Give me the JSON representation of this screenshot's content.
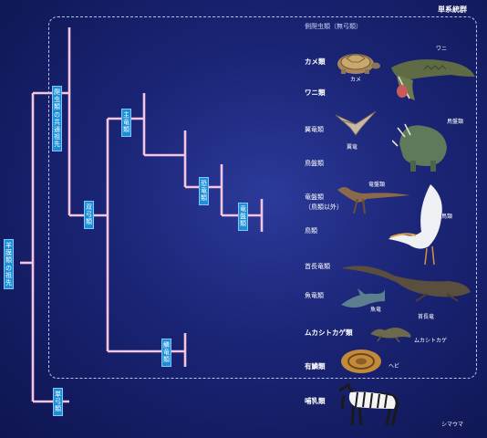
{
  "corner_title": "単系統群",
  "labels": {
    "anapsid": "側爬虫類（無弓類）",
    "turtles": "カメ類",
    "crocodiles": "ワニ類",
    "pterosaurs": "翼竜類",
    "ornithischians": "鳥盤類",
    "saurischians": "竜盤類",
    "saurischians_note": "（鳥類以外）",
    "birds": "鳥類",
    "plesiosaurs": "首長竜類",
    "ichthyosaurs": "魚竜類",
    "tuatara": "ムカシトカゲ類",
    "squamates": "有鱗類",
    "mammals": "哺乳類"
  },
  "clades": {
    "amniotes": "羊膜類の祖先",
    "reptiles_ancestor": "爬虫類の共通祖先",
    "diapsids": "双弓類",
    "archosaurs": "主竜類",
    "dinosaurs": "恐竜類",
    "saurischia": "竜盤類",
    "lepidosaurs": "鱗竜類",
    "synapsids": "単弓類"
  },
  "captions": {
    "turtle": "カメ",
    "crocodile": "ワニ",
    "triceratops": "鳥盤類",
    "pterosaur": "翼竜",
    "dinosaur": "竜盤類",
    "pelican": "鳥類",
    "ichthyosaur": "魚竜",
    "plesiosaur": "首長竜",
    "tuatara": "ムカシトカゲ",
    "snake": "ヘビ",
    "zebra": "シマウマ"
  },
  "colors": {
    "branch_pink": "#f07ab8",
    "branch_light": "#f4c6e3",
    "clade_box": "#1d8fd8",
    "background": "#1a2474"
  }
}
